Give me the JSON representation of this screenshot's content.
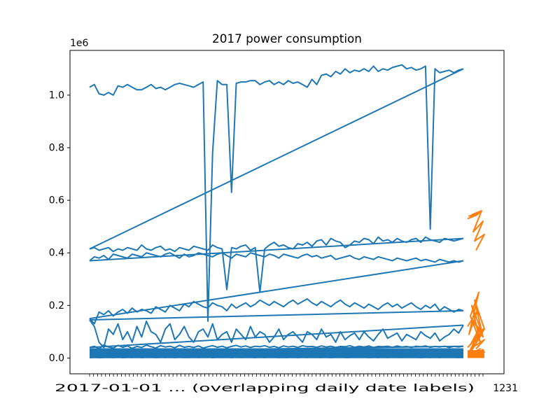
{
  "chart_data": {
    "type": "line",
    "title": "2017 power consumption",
    "xlabel": "",
    "ylabel": "",
    "y_offset_label": "1e6",
    "y_scale": 1000000,
    "ylim": [
      -60000,
      1170000
    ],
    "yticks": [
      0,
      200000,
      400000,
      600000,
      800000,
      1000000
    ],
    "ytick_labels": [
      "0.0",
      "0.2",
      "0.4",
      "0.6",
      "0.8",
      "1.0"
    ],
    "x_tick_label_visible": "2017-01-01 ... (overlapping daily date labels)",
    "x_tick_label_end": "1231",
    "grid": false,
    "legend": "none",
    "colors": {
      "series_main": "#1f77b4",
      "series_overlay": "#ff7f0e"
    },
    "series": [
      {
        "values": [
          1030000,
          1040000,
          1005000,
          1000000,
          1010000,
          1000000,
          1035000,
          1030000,
          1040000,
          1030000,
          1020000,
          1020000,
          1030000,
          1040000,
          1025000,
          1030000,
          1020000,
          1030000,
          1040000,
          1045000,
          1040000,
          1035000,
          1030000,
          1040000,
          1050000,
          140000,
          780000,
          1055000,
          1040000,
          1040000,
          630000,
          1045000,
          1050000,
          1050000,
          1055000,
          1055000,
          1040000,
          1050000,
          1055000,
          1040000,
          1050000,
          1040000,
          1055000,
          1045000,
          1050000,
          1040000,
          1030000,
          1060000,
          1040000,
          1075000,
          1080000,
          1070000,
          1090000,
          1080000,
          1100000,
          1085000,
          1095000,
          1090000,
          1100000,
          1090000,
          1110000,
          1090000,
          1100000,
          1095000,
          1105000,
          1110000,
          1115000,
          1100000,
          1105000,
          1095000,
          1100000,
          1110000,
          490000,
          1100000,
          1085000,
          1090000,
          1095000,
          1085000,
          1095000,
          1100000
        ]
      },
      {
        "values": [
          415000,
          420000,
          410000,
          415000,
          420000,
          405000,
          415000,
          410000,
          420000,
          415000,
          410000,
          430000,
          415000,
          410000,
          420000,
          425000,
          410000,
          415000,
          405000,
          420000,
          415000,
          410000,
          425000,
          420000,
          415000,
          410000,
          430000,
          420000,
          415000,
          260000,
          420000,
          415000,
          425000,
          430000,
          410000,
          420000,
          250000,
          415000,
          430000,
          440000,
          425000,
          430000,
          420000,
          415000,
          435000,
          430000,
          440000,
          425000,
          445000,
          450000,
          430000,
          455000,
          445000,
          440000,
          420000,
          430000,
          445000,
          440000,
          455000,
          450000,
          435000,
          460000,
          445000,
          450000,
          440000,
          455000,
          445000,
          440000,
          450000,
          455000,
          440000,
          460000,
          450000,
          445000,
          440000,
          455000,
          450000,
          445000,
          450000,
          455000
        ]
      },
      {
        "values": [
          370000,
          385000,
          380000,
          390000,
          375000,
          395000,
          390000,
          385000,
          380000,
          395000,
          390000,
          385000,
          400000,
          395000,
          390000,
          385000,
          395000,
          400000,
          390000,
          380000,
          395000,
          385000,
          390000,
          400000,
          395000,
          390000,
          385000,
          395000,
          400000,
          390000,
          380000,
          395000,
          390000,
          385000,
          400000,
          395000,
          390000,
          385000,
          395000,
          390000,
          380000,
          395000,
          390000,
          385000,
          380000,
          390000,
          395000,
          385000,
          390000,
          380000,
          385000,
          390000,
          375000,
          380000,
          385000,
          390000,
          380000,
          375000,
          385000,
          380000,
          375000,
          385000,
          380000,
          375000,
          370000,
          380000,
          375000,
          370000,
          375000,
          380000,
          370000,
          375000,
          370000,
          365000,
          375000,
          370000,
          365000,
          370000,
          365000,
          370000
        ]
      },
      {
        "values": [
          150000,
          130000,
          175000,
          165000,
          180000,
          160000,
          175000,
          185000,
          170000,
          190000,
          175000,
          185000,
          180000,
          170000,
          195000,
          185000,
          175000,
          200000,
          190000,
          180000,
          205000,
          195000,
          215000,
          205000,
          195000,
          190000,
          210000,
          200000,
          195000,
          180000,
          205000,
          190000,
          200000,
          210000,
          195000,
          205000,
          220000,
          210000,
          200000,
          215000,
          205000,
          195000,
          210000,
          220000,
          205000,
          215000,
          225000,
          210000,
          200000,
          215000,
          205000,
          195000,
          210000,
          220000,
          205000,
          195000,
          210000,
          200000,
          190000,
          205000,
          195000,
          185000,
          200000,
          210000,
          195000,
          205000,
          190000,
          200000,
          210000,
          195000,
          185000,
          200000,
          190000,
          205000,
          180000,
          195000,
          185000,
          175000,
          185000,
          180000
        ]
      },
      {
        "values": [
          145000,
          120000,
          60000,
          40000,
          110000,
          90000,
          130000,
          70000,
          100000,
          60000,
          120000,
          80000,
          140000,
          100000,
          90000,
          60000,
          110000,
          130000,
          70000,
          90000,
          120000,
          80000,
          60000,
          100000,
          110000,
          80000,
          130000,
          70000,
          90000,
          100000,
          60000,
          110000,
          90000,
          70000,
          120000,
          80000,
          100000,
          90000,
          60000,
          80000,
          110000,
          70000,
          90000,
          100000,
          80000,
          60000,
          100000,
          90000,
          70000,
          110000,
          80000,
          90000,
          60000,
          100000,
          70000,
          85000,
          95000,
          70000,
          100000,
          80000,
          65000,
          90000,
          110000,
          75000,
          85000,
          95000,
          65000,
          90000,
          80000,
          70000,
          100000,
          85000,
          75000,
          95000,
          65000,
          80000,
          90000,
          110000,
          95000,
          125000
        ]
      },
      {
        "values": [
          40000,
          45000,
          35000,
          50000,
          42000,
          38000,
          48000,
          41000,
          46000,
          37000,
          44000,
          40000,
          49000,
          43000,
          38000,
          47000,
          42000,
          45000,
          39000,
          48000,
          41000,
          44000,
          40000,
          46000,
          38000,
          43000,
          47000,
          41000,
          45000,
          39000,
          44000,
          48000,
          42000,
          46000,
          40000,
          45000,
          43000,
          47000,
          41000,
          44000,
          39000,
          46000,
          42000,
          45000,
          40000,
          47000,
          43000,
          44000,
          41000,
          46000,
          42000,
          45000,
          40000,
          44000,
          43000,
          47000,
          41000,
          45000,
          42000,
          46000,
          40000,
          44000,
          43000,
          45000,
          41000,
          46000,
          42000,
          44000,
          40000,
          45000,
          43000,
          46000,
          41000,
          44000,
          42000,
          45000,
          40000,
          44000,
          42000,
          45000
        ]
      },
      {
        "values": [
          25000,
          30000,
          20000,
          28000,
          22000,
          32000,
          26000,
          24000,
          30000,
          21000,
          27000,
          29000,
          23000,
          31000,
          25000,
          28000,
          22000,
          30000,
          26000,
          24000,
          29000,
          21000,
          27000,
          31000,
          23000,
          28000,
          25000,
          30000,
          22000,
          26000,
          29000,
          24000,
          27000,
          31000,
          23000,
          28000,
          25000,
          30000,
          22000,
          26000,
          29000,
          24000,
          27000,
          28000,
          23000,
          30000,
          25000,
          27000,
          22000,
          29000,
          26000,
          24000,
          28000,
          31000,
          23000,
          27000,
          25000,
          29000,
          22000,
          26000,
          28000,
          24000,
          30000,
          25000,
          27000,
          23000,
          29000,
          26000,
          24000,
          28000,
          25000,
          27000,
          23000,
          29000,
          26000,
          24000,
          28000,
          25000,
          27000,
          26000
        ]
      },
      {
        "values": [
          8000,
          12000,
          6000,
          10000,
          9000,
          14000,
          7000,
          11000,
          13000,
          8000,
          10000,
          12000,
          9000,
          15000,
          7000,
          11000,
          10000,
          13000,
          8000,
          12000,
          9000,
          14000,
          11000,
          7000,
          10000,
          13000,
          9000,
          12000,
          8000,
          11000,
          14000,
          10000,
          9000,
          12000,
          7000,
          13000,
          11000,
          8000,
          10000,
          12000,
          9000,
          14000,
          10000,
          11000,
          8000,
          13000,
          9000,
          12000,
          10000,
          11000,
          7000,
          12000,
          9000,
          13000,
          10000,
          8000,
          11000,
          12000,
          9000,
          14000,
          10000,
          11000,
          8000,
          12000,
          9000,
          13000,
          10000,
          11000,
          8000,
          12000,
          9000,
          11000,
          10000,
          13000,
          9000,
          12000,
          10000,
          11000,
          9000,
          10000
        ]
      },
      {
        "values": [
          2000,
          3000,
          1500,
          2500,
          3500,
          2000,
          3000,
          1800,
          2800,
          2200,
          3200,
          2000,
          2600,
          3000,
          1900,
          2700,
          2300,
          3100,
          2100,
          2900,
          2400,
          1800,
          3000,
          2200,
          2600,
          3300,
          2000,
          2800,
          2400,
          3000,
          1900,
          2700,
          2200,
          3100,
          2500,
          2000,
          2900,
          2300,
          2700,
          3200,
          2100,
          2600,
          2400,
          3000,
          2000,
          2800,
          2200,
          3100,
          2500,
          2300,
          2900,
          2100,
          2700,
          3000,
          2400,
          2200,
          2800,
          2600,
          3100,
          2000,
          2700,
          2400,
          2900,
          2200,
          3000,
          2500,
          2300,
          2800,
          2600,
          3000,
          2100,
          2700,
          2400,
          2900,
          2300,
          2800,
          2500,
          2600,
          2400,
          2700
        ]
      }
    ],
    "overlay_series": [
      {
        "values": [
          530000,
          545000,
          540000,
          550000,
          535000,
          555000,
          545000,
          560000,
          480000,
          520000,
          445000,
          470000,
          410000
        ]
      },
      {
        "values": [
          120000,
          180000,
          90000,
          250000,
          160000,
          60000,
          200000,
          100000,
          140000,
          80000,
          220000,
          110000,
          60000
        ]
      },
      {
        "values": [
          40000,
          80000,
          20000,
          100000,
          50000,
          120000,
          30000,
          90000,
          60000,
          110000,
          45000,
          70000,
          35000
        ]
      },
      {
        "values": [
          10000,
          25000,
          5000,
          30000,
          15000,
          35000,
          8000,
          28000,
          12000,
          32000,
          18000,
          22000,
          6000
        ]
      }
    ]
  }
}
